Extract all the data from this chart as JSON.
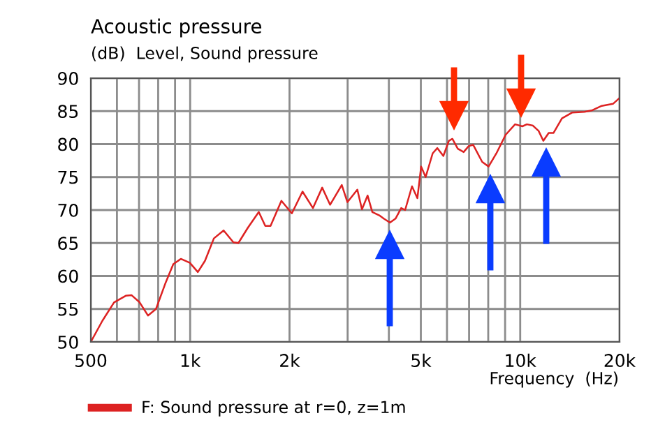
{
  "chart_data": {
    "type": "line",
    "title": "Acoustic pressure",
    "subtitle": "(dB)  Level, Sound pressure",
    "xlabel": "Frequency  (Hz)",
    "log": "x",
    "grid": true,
    "legend": "bottom",
    "marker": "none",
    "line_style": "solid",
    "xlim": [
      500,
      20000
    ],
    "ylim": [
      50,
      90
    ],
    "xticks": [
      500,
      {
        "value": 600,
        "label": null
      },
      {
        "value": 700,
        "label": null
      },
      {
        "value": 800,
        "label": null
      },
      {
        "value": 900,
        "label": null
      },
      {
        "value": 1000,
        "label": "1k"
      },
      {
        "value": 2000,
        "label": "2k"
      },
      {
        "value": 3000,
        "label": null
      },
      {
        "value": 4000,
        "label": null
      },
      {
        "value": 5000,
        "label": "5k"
      },
      {
        "value": 6000,
        "label": null
      },
      {
        "value": 7000,
        "label": null
      },
      {
        "value": 8000,
        "label": null
      },
      {
        "value": 9000,
        "label": null
      },
      {
        "value": 10000,
        "label": "10k"
      },
      {
        "value": 20000,
        "label": "20k"
      }
    ],
    "yticks": [
      50,
      55,
      60,
      65,
      70,
      75,
      80,
      85,
      90
    ],
    "series": [
      {
        "name": "F: Sound pressure at r=0, z=1m",
        "color": "#dd2222",
        "x": [
          500,
          542,
          588,
          638,
          664,
          703,
          745,
          788,
          840,
          889,
          937,
          998,
          1055,
          1109,
          1180,
          1263,
          1352,
          1400,
          1495,
          1614,
          1689,
          1752,
          1890,
          2033,
          2190,
          2355,
          2512,
          2655,
          2880,
          2995,
          3210,
          3315,
          3448,
          3564,
          3740,
          3860,
          4030,
          4190,
          4360,
          4480,
          4700,
          4880,
          5010,
          5170,
          5430,
          5610,
          5850,
          6080,
          6230,
          6470,
          6740,
          6980,
          7200,
          7670,
          8020,
          8470,
          9030,
          9650,
          10150,
          10480,
          10930,
          11370,
          11750,
          12200,
          12620,
          13380,
          14390,
          15660,
          16460,
          17660,
          19100,
          20000
        ],
        "values": [
          50,
          53.2,
          56,
          57,
          57.1,
          56,
          54,
          55,
          58.8,
          61.8,
          62.6,
          62,
          60.6,
          62.3,
          65.7,
          66.9,
          65.1,
          65,
          67.3,
          69.7,
          67.6,
          67.6,
          71.4,
          69.5,
          72.8,
          70.3,
          73.4,
          70.8,
          73.8,
          71.2,
          73.1,
          70.1,
          72.2,
          69.7,
          69.2,
          68.7,
          68.1,
          68.7,
          70.3,
          70,
          73.6,
          71.8,
          76.6,
          75,
          78.6,
          79.4,
          78.2,
          80.5,
          80.8,
          79.3,
          78.8,
          79.7,
          79.9,
          77.3,
          76.6,
          78.6,
          81.4,
          83,
          82.7,
          83,
          82.8,
          82,
          80.5,
          81.7,
          81.7,
          83.9,
          84.8,
          84.9,
          85.1,
          85.8,
          86.1,
          87
        ]
      }
    ]
  }
}
